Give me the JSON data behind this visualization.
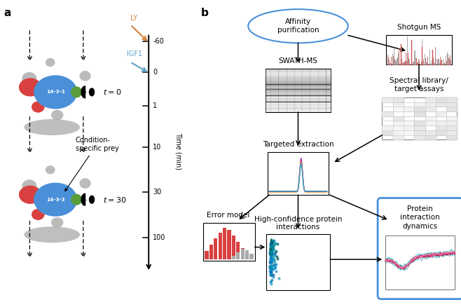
{
  "bg_color": "#ffffff",
  "label_a": "a",
  "label_b": "b",
  "time_ticks": [
    -60,
    0,
    1,
    10,
    30,
    100
  ],
  "time_label": "Time (min)",
  "LY_color": "#d4813a",
  "IGF1_color": "#5ba3c9",
  "t0_label": "t = 0",
  "t30_label": "t = 30",
  "condition_label": "Condition-\nspecific prey",
  "node_14_3_3": "14-3-3",
  "affinity_label": "Affinity\npurification",
  "swath_label": "SWATH-MS",
  "shotgun_label": "Shotgun MS",
  "spectral_label": "Spectral library/\ntarget assays",
  "targeted_label": "Targeted extraction",
  "error_label": "Error model",
  "protein_interactions_label": "High-confidence protein\ninteractions",
  "protein_dynamics_label": "Protein\ninteraction\ndynamics",
  "blue_14_3_3": "#4a90d9",
  "red_prey": "#d94040",
  "green_bait": "#5a9e3a",
  "gray_bg": "#aaaaaa",
  "arrow_blue": "#4a90d9"
}
